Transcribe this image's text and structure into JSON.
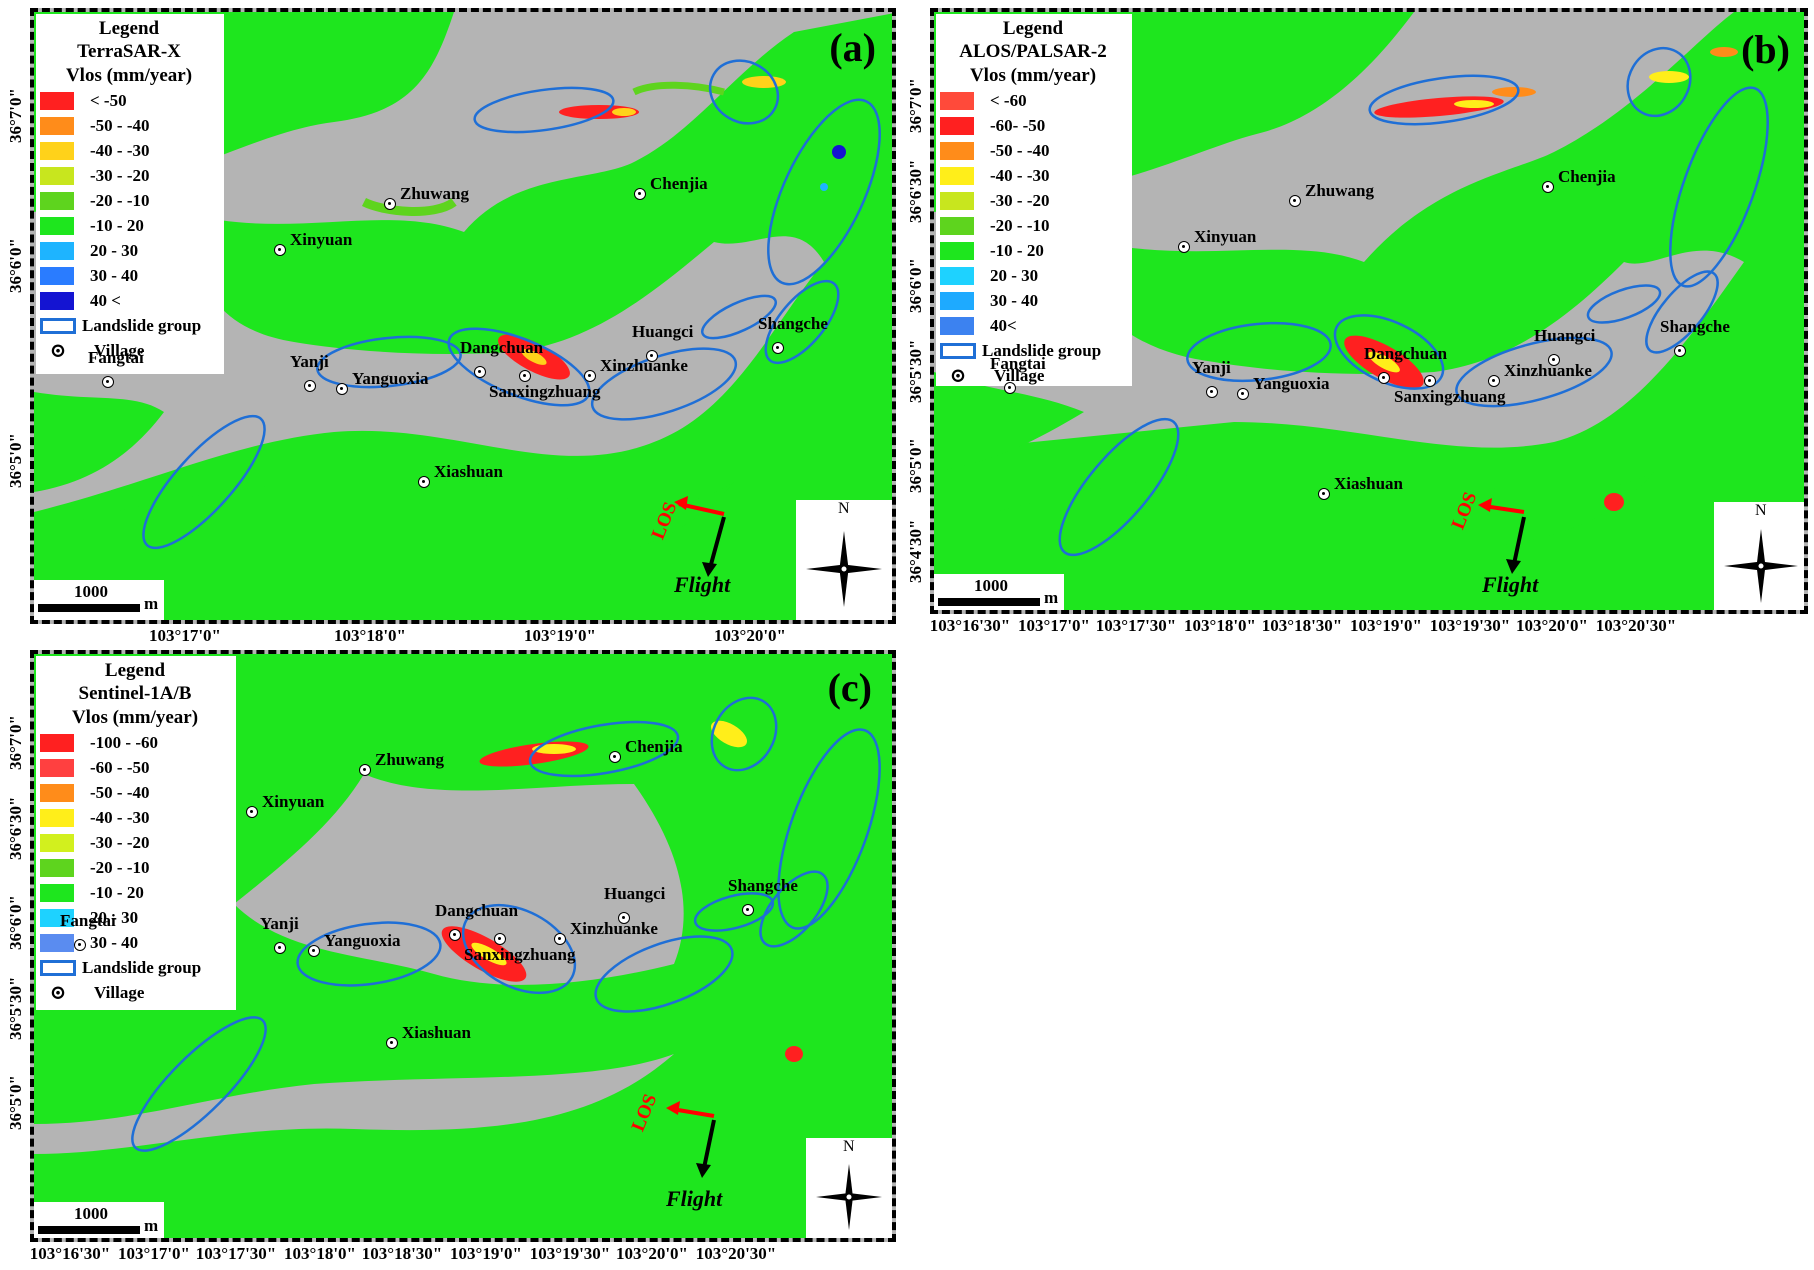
{
  "panels": {
    "a": {
      "label": "(a)",
      "legend_title": "Legend",
      "sensor": "TerraSAR-X",
      "unit": "Vlos (mm/year)",
      "classes": [
        {
          "label": "< -50",
          "color": "#ff2020"
        },
        {
          "label": "-50 - -40",
          "color": "#ff8c1a"
        },
        {
          "label": "-40 - -30",
          "color": "#ffd21a"
        },
        {
          "label": "-30 - -20",
          "color": "#c8e61e"
        },
        {
          "label": "-20 - -10",
          "color": "#5ed41e"
        },
        {
          "label": "-10 - 20",
          "color": "#1ee61e"
        },
        {
          "label": "20 - 30",
          "color": "#1eb4ff"
        },
        {
          "label": "30 - 40",
          "color": "#2a7cff"
        },
        {
          "label": "40 <",
          "color": "#1414d2"
        }
      ],
      "landslide_label": "Landslide group",
      "village_label": "Village",
      "villages": [
        "Zhuwang",
        "Chenjia",
        "Xinyuan",
        "Fangtai",
        "Yanji",
        "Yanguoxia",
        "Dangchuan",
        "Sanxingzhuang",
        "Xinzhuanke",
        "Huangci",
        "Shangche",
        "Xiashuan"
      ],
      "x_ticks": [
        "103°17'0\"",
        "103°18'0\"",
        "103°19'0\"",
        "103°20'0\""
      ],
      "y_ticks": [
        "36°7'0\"",
        "36°6'0\"",
        "36°5'0\""
      ],
      "scale": "1000",
      "scale_unit": "m",
      "north": "N",
      "los": "LOS",
      "flight": "Flight"
    },
    "b": {
      "label": "(b)",
      "legend_title": "Legend",
      "sensor": "ALOS/PALSAR-2",
      "unit": "Vlos (mm/year)",
      "classes": [
        {
          "label": "< -60",
          "color": "#ff4a3a"
        },
        {
          "label": "-60- -50",
          "color": "#ff2020"
        },
        {
          "label": "-50 - -40",
          "color": "#ff8c1a"
        },
        {
          "label": "-40 - -30",
          "color": "#ffee1a"
        },
        {
          "label": "-30 - -20",
          "color": "#c8e61e"
        },
        {
          "label": "-20 - -10",
          "color": "#5ed41e"
        },
        {
          "label": "-10 - 20",
          "color": "#1ee61e"
        },
        {
          "label": "20 - 30",
          "color": "#1ed2ff"
        },
        {
          "label": "30 - 40",
          "color": "#1eaaff"
        },
        {
          "label": "40<",
          "color": "#3c82f0"
        }
      ],
      "landslide_label": "Landslide group",
      "village_label": "Village",
      "villages": [
        "Zhuwang",
        "Chenjia",
        "Xinyuan",
        "Fangtai",
        "Yanji",
        "Yanguoxia",
        "Dangchuan",
        "Sanxingzhuang",
        "Xinzhuanke",
        "Huangci",
        "Shangche",
        "Xiashuan"
      ],
      "x_ticks": [
        "103°16'30\"",
        "103°17'0\"",
        "103°17'30\"",
        "103°18'0\"",
        "103°18'30\"",
        "103°19'0\"",
        "103°19'30\"",
        "103°20'0\"",
        "103°20'30\""
      ],
      "y_ticks": [
        "36°7'0\"",
        "36°6'30\"",
        "36°6'0\"",
        "36°5'30\"",
        "36°5'0\"",
        "36°4'30\""
      ],
      "scale": "1000",
      "scale_unit": "m",
      "north": "N",
      "los": "LOS",
      "flight": "Flight"
    },
    "c": {
      "label": "(c)",
      "legend_title": "Legend",
      "sensor": "Sentinel-1A/B",
      "unit": "Vlos (mm/year)",
      "classes": [
        {
          "label": "-100 - -60",
          "color": "#ff2020"
        },
        {
          "label": "-60 - -50",
          "color": "#ff4040"
        },
        {
          "label": "-50 - -40",
          "color": "#ff8c1a"
        },
        {
          "label": "-40 - -30",
          "color": "#ffee1a"
        },
        {
          "label": "-30 - -20",
          "color": "#d2f01e"
        },
        {
          "label": "-20 - -10",
          "color": "#5ed41e"
        },
        {
          "label": "-10 - 20",
          "color": "#1ee61e"
        },
        {
          "label": "20 - 30",
          "color": "#1ed2ff"
        },
        {
          "label": "30 - 40",
          "color": "#5a8cf0"
        }
      ],
      "landslide_label": "Landslide group",
      "village_label": "Village",
      "villages": [
        "Zhuwang",
        "Chenjia",
        "Xinyuan",
        "Fangtai",
        "Yanji",
        "Yanguoxia",
        "Dangchuan",
        "Sanxingzhuang",
        "Xinzhuanke",
        "Huangci",
        "Shangche",
        "Xiashuan"
      ],
      "x_ticks": [
        "103°16'30\"",
        "103°17'0\"",
        "103°17'30\"",
        "103°18'0\"",
        "103°18'30\"",
        "103°19'0\"",
        "103°19'30\"",
        "103°20'0\"",
        "103°20'30\""
      ],
      "y_ticks": [
        "36°7'0\"",
        "36°6'30\"",
        "36°6'0\"",
        "36°5'30\"",
        "36°5'0\""
      ],
      "scale": "1000",
      "scale_unit": "m",
      "north": "N",
      "los": "LOS",
      "flight": "Flight"
    }
  },
  "colors": {
    "background": "#b4b4b4",
    "stable": "#1ee61e",
    "outline": "#1f6fd6"
  }
}
